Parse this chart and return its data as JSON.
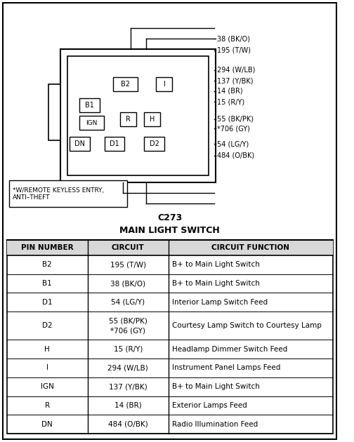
{
  "title_c273": "C273",
  "title_main": "MAIN LIGHT SWITCH",
  "bg_color": "#f0f0f0",
  "border_color": "#000000",
  "wire_labels_right": [
    "38 (BK/O)",
    "195 (T/W)",
    "294 (W/LB)",
    "137 (Y/BK)",
    "14 (BR)",
    "15 (R/Y)",
    "55 (BK/PK)",
    "*706 (GY)",
    "54 (LG/Y)",
    "484 (O/BK)"
  ],
  "pin_labels": [
    "B2",
    "B1",
    "IGN",
    "DN",
    "D1",
    "D2",
    "R",
    "H",
    "I"
  ],
  "footnote": "*W/REMOTE KEYLESS ENTRY,\nANTI–THEFT",
  "table_headers": [
    "PIN NUMBER",
    "CIRCUIT",
    "CIRCUIT FUNCTION"
  ],
  "table_rows": [
    [
      "B2",
      "195 (T/W)",
      "B+ to Main Light Switch"
    ],
    [
      "B1",
      "38 (BK/O)",
      "B+ to Main Light Switch"
    ],
    [
      "D1",
      "54 (LG/Y)",
      "Interior Lamp Switch Feed"
    ],
    [
      "D2",
      "55 (BK/PK)\n*706 (GY)",
      "Courtesy Lamp Switch to Courtesy Lamp"
    ],
    [
      "H",
      "15 (R/Y)",
      "Headlamp Dimmer Switch Feed"
    ],
    [
      "I",
      "294 (W/LB)",
      "Instrument Panel Lamps Feed"
    ],
    [
      "IGN",
      "137 (Y/BK)",
      "B+ to Main Light Switch"
    ],
    [
      "R",
      "14 (BR)",
      "Exterior Lamps Feed"
    ],
    [
      "DN",
      "484 (O/BK)",
      "Radio Illumination Feed"
    ]
  ]
}
